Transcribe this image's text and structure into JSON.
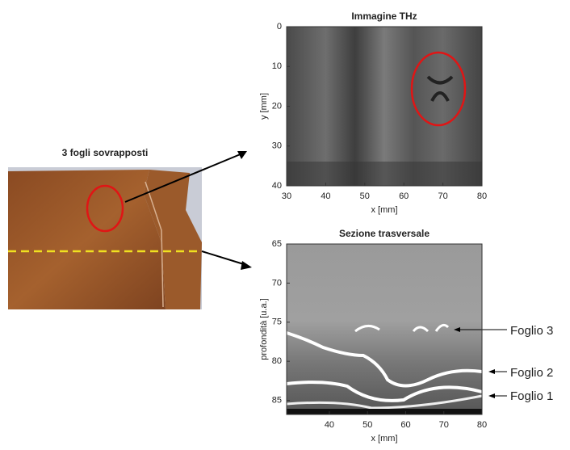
{
  "photo": {
    "title": "3 fogli sovrapposti"
  },
  "panels": [
    {
      "title": "Immagine THz",
      "x_label": "x [mm]",
      "y_label": "y [mm]",
      "xlim": [
        30,
        80
      ],
      "ylim": [
        40,
        0
      ],
      "xticks": [
        30,
        40,
        50,
        60,
        70,
        80
      ],
      "yticks": [
        0,
        10,
        20,
        30,
        40
      ]
    },
    {
      "title": "Sezione trasversale",
      "x_label": "x [mm]",
      "y_label": "profondità [u.a.]",
      "xlim": [
        28.8,
        80
      ],
      "ylim": [
        86.8,
        65
      ],
      "xticks": [
        40,
        50,
        60,
        70,
        80
      ],
      "yticks": [
        65,
        70,
        75,
        80,
        85
      ]
    }
  ],
  "annotations": [
    "Foglio 3",
    "Foglio 2",
    "Foglio 1"
  ]
}
